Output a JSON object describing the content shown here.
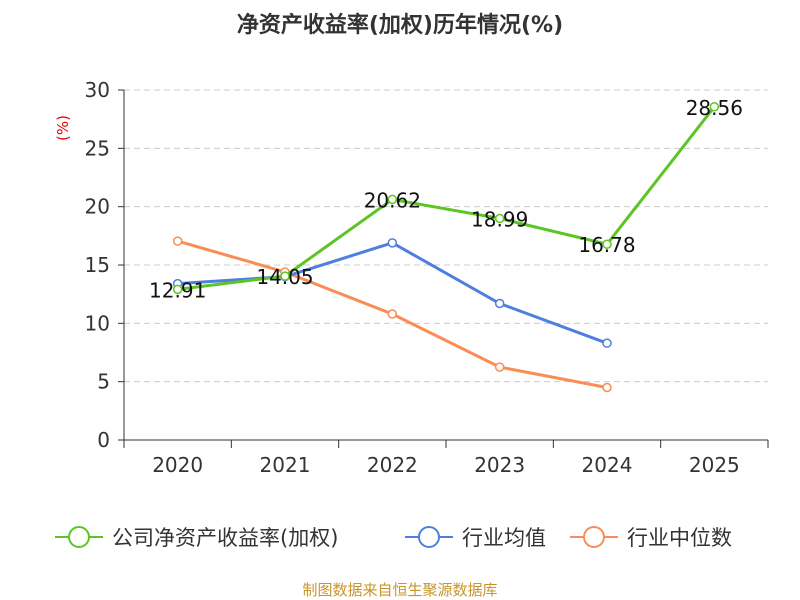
{
  "chart_data": {
    "type": "line",
    "title": "净资产收益率(加权)历年情况(%)",
    "ylabel": "(%)",
    "xlabel": "",
    "categories": [
      "2020",
      "2021",
      "2022",
      "2023",
      "2024",
      "2025"
    ],
    "ylim": [
      0,
      30
    ],
    "yticks": [
      "0",
      "5",
      "10",
      "15",
      "20",
      "25",
      "30"
    ],
    "grid": true,
    "legend_position": "bottom",
    "series": [
      {
        "name": "公司净资产收益率(加权)",
        "color": "#5cc524",
        "values": [
          12.91,
          14.05,
          20.62,
          18.99,
          16.78,
          28.56
        ],
        "labels": [
          "12.91",
          "14.05",
          "20.62",
          "18.99",
          "16.78",
          "28.56"
        ]
      },
      {
        "name": "行业均值",
        "color": "#4e7fe0",
        "values": [
          13.4,
          14.0,
          16.9,
          11.7,
          8.3,
          null
        ]
      },
      {
        "name": "行业中位数",
        "color": "#fa8c55",
        "values": [
          17.05,
          14.4,
          10.8,
          6.25,
          4.5,
          null
        ]
      }
    ]
  },
  "source": "制图数据来自恒生聚源数据库"
}
